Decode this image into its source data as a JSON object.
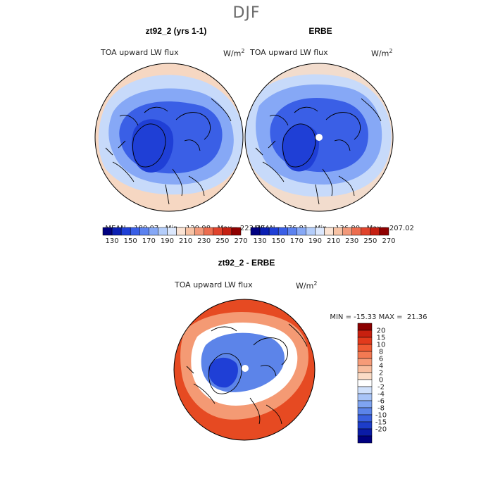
{
  "figure": {
    "season": "DJF"
  },
  "panels": {
    "model": {
      "title": "zt92_2 (yrs 1-1)",
      "variable": "TOA upward LW flux",
      "units": "W/m",
      "units_exp": "2",
      "mean_label": "MEAN=",
      "mean": "180.07",
      "min_label": "Min=",
      "min": "129.98",
      "max_label": "Max=",
      "max": "223.30"
    },
    "obs": {
      "title": "ERBE",
      "variable": "TOA upward LW flux",
      "units": "W/m",
      "units_exp": "2",
      "mean_label": "MEAN=",
      "mean": "176.81",
      "min_label": "Min=",
      "min": "136.80",
      "max_label": "Max=",
      "max": "207.02"
    },
    "diff": {
      "title": "zt92_2 - ERBE",
      "variable": "TOA upward LW flux",
      "units": "W/m",
      "units_exp": "2",
      "min_label": "MIN =",
      "min": "-15.33",
      "max_label": "MAX =",
      "max": "21.36"
    }
  },
  "colorbars": {
    "absolute": {
      "labels": [
        "130",
        "150",
        "170",
        "190",
        "210",
        "230",
        "250",
        "270"
      ],
      "colors": [
        "#000080",
        "#0b1fb2",
        "#1f3fd6",
        "#3a5fe6",
        "#5c82ef",
        "#86a8f6",
        "#b4cdfa",
        "#dce8fd",
        "#fbe3d3",
        "#f7c2a4",
        "#f2997a",
        "#ec6d4f",
        "#e0432c",
        "#c52012",
        "#8f0000"
      ]
    },
    "difference": {
      "labels": [
        "20",
        "15",
        "10",
        "8",
        "6",
        "4",
        "2",
        "0",
        "-2",
        "-4",
        "-6",
        "-8",
        "-10",
        "-15",
        "-20"
      ],
      "colors": [
        "#8b0000",
        "#c8200f",
        "#e23a1c",
        "#ef5a33",
        "#f37a53",
        "#f69b78",
        "#f8bd9e",
        "#fbdcc6",
        "#ffffff",
        "#cfe0fb",
        "#a8c4f7",
        "#7fa4f1",
        "#5c84e9",
        "#3a60df",
        "#1d3dc9",
        "#0a1ba7",
        "#000080"
      ]
    }
  },
  "map_style": {
    "fill_outer_model": "#f6d7c2",
    "fill_outer_obs": "#f2dccd",
    "ring_light": "#c7dafa",
    "ring_mid": "#86a8f6",
    "core_blue": "#3a5fe6",
    "deep_blue": "#1f3fd6",
    "diff_red": "#e64a22",
    "diff_light_red": "#f49a74",
    "diff_white": "#ffffff",
    "diff_blue": "#5c84e9",
    "coast": "#000000"
  }
}
